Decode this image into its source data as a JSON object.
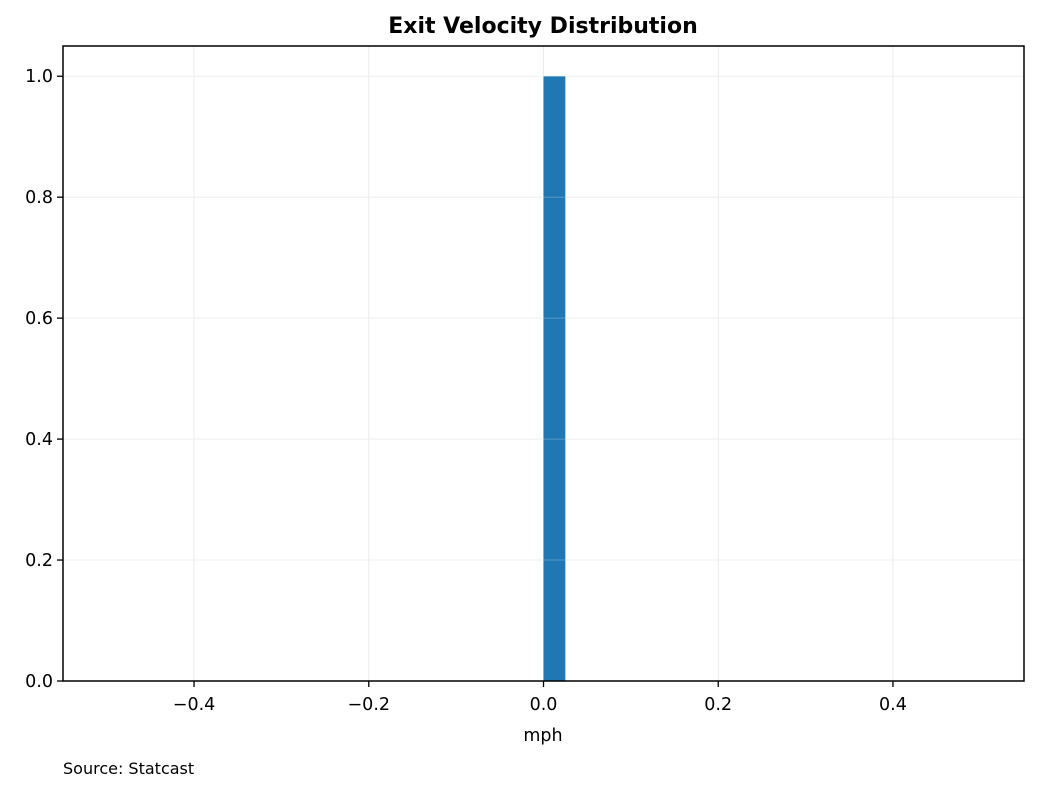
{
  "chart_data": {
    "type": "bar",
    "title": "Exit Velocity Distribution",
    "xlabel": "mph",
    "ylabel": "",
    "note": "Source: Statcast",
    "xlim": [
      -0.55,
      0.55
    ],
    "ylim": [
      0,
      1.05
    ],
    "x_ticks": [
      -0.4,
      -0.2,
      0.0,
      0.2,
      0.4
    ],
    "x_tick_labels": [
      "−0.4",
      "−0.2",
      "0.0",
      "0.2",
      "0.4"
    ],
    "y_ticks": [
      0.0,
      0.2,
      0.4,
      0.6,
      0.8,
      1.0
    ],
    "y_tick_labels": [
      "0.0",
      "0.2",
      "0.4",
      "0.6",
      "0.8",
      "1.0"
    ],
    "grid": true,
    "bins": [
      {
        "x_start": 0.0,
        "x_end": 0.025,
        "value": 1.0
      }
    ],
    "colors": {
      "bar": "#1f77b4",
      "grid": "#ebebeb"
    }
  }
}
